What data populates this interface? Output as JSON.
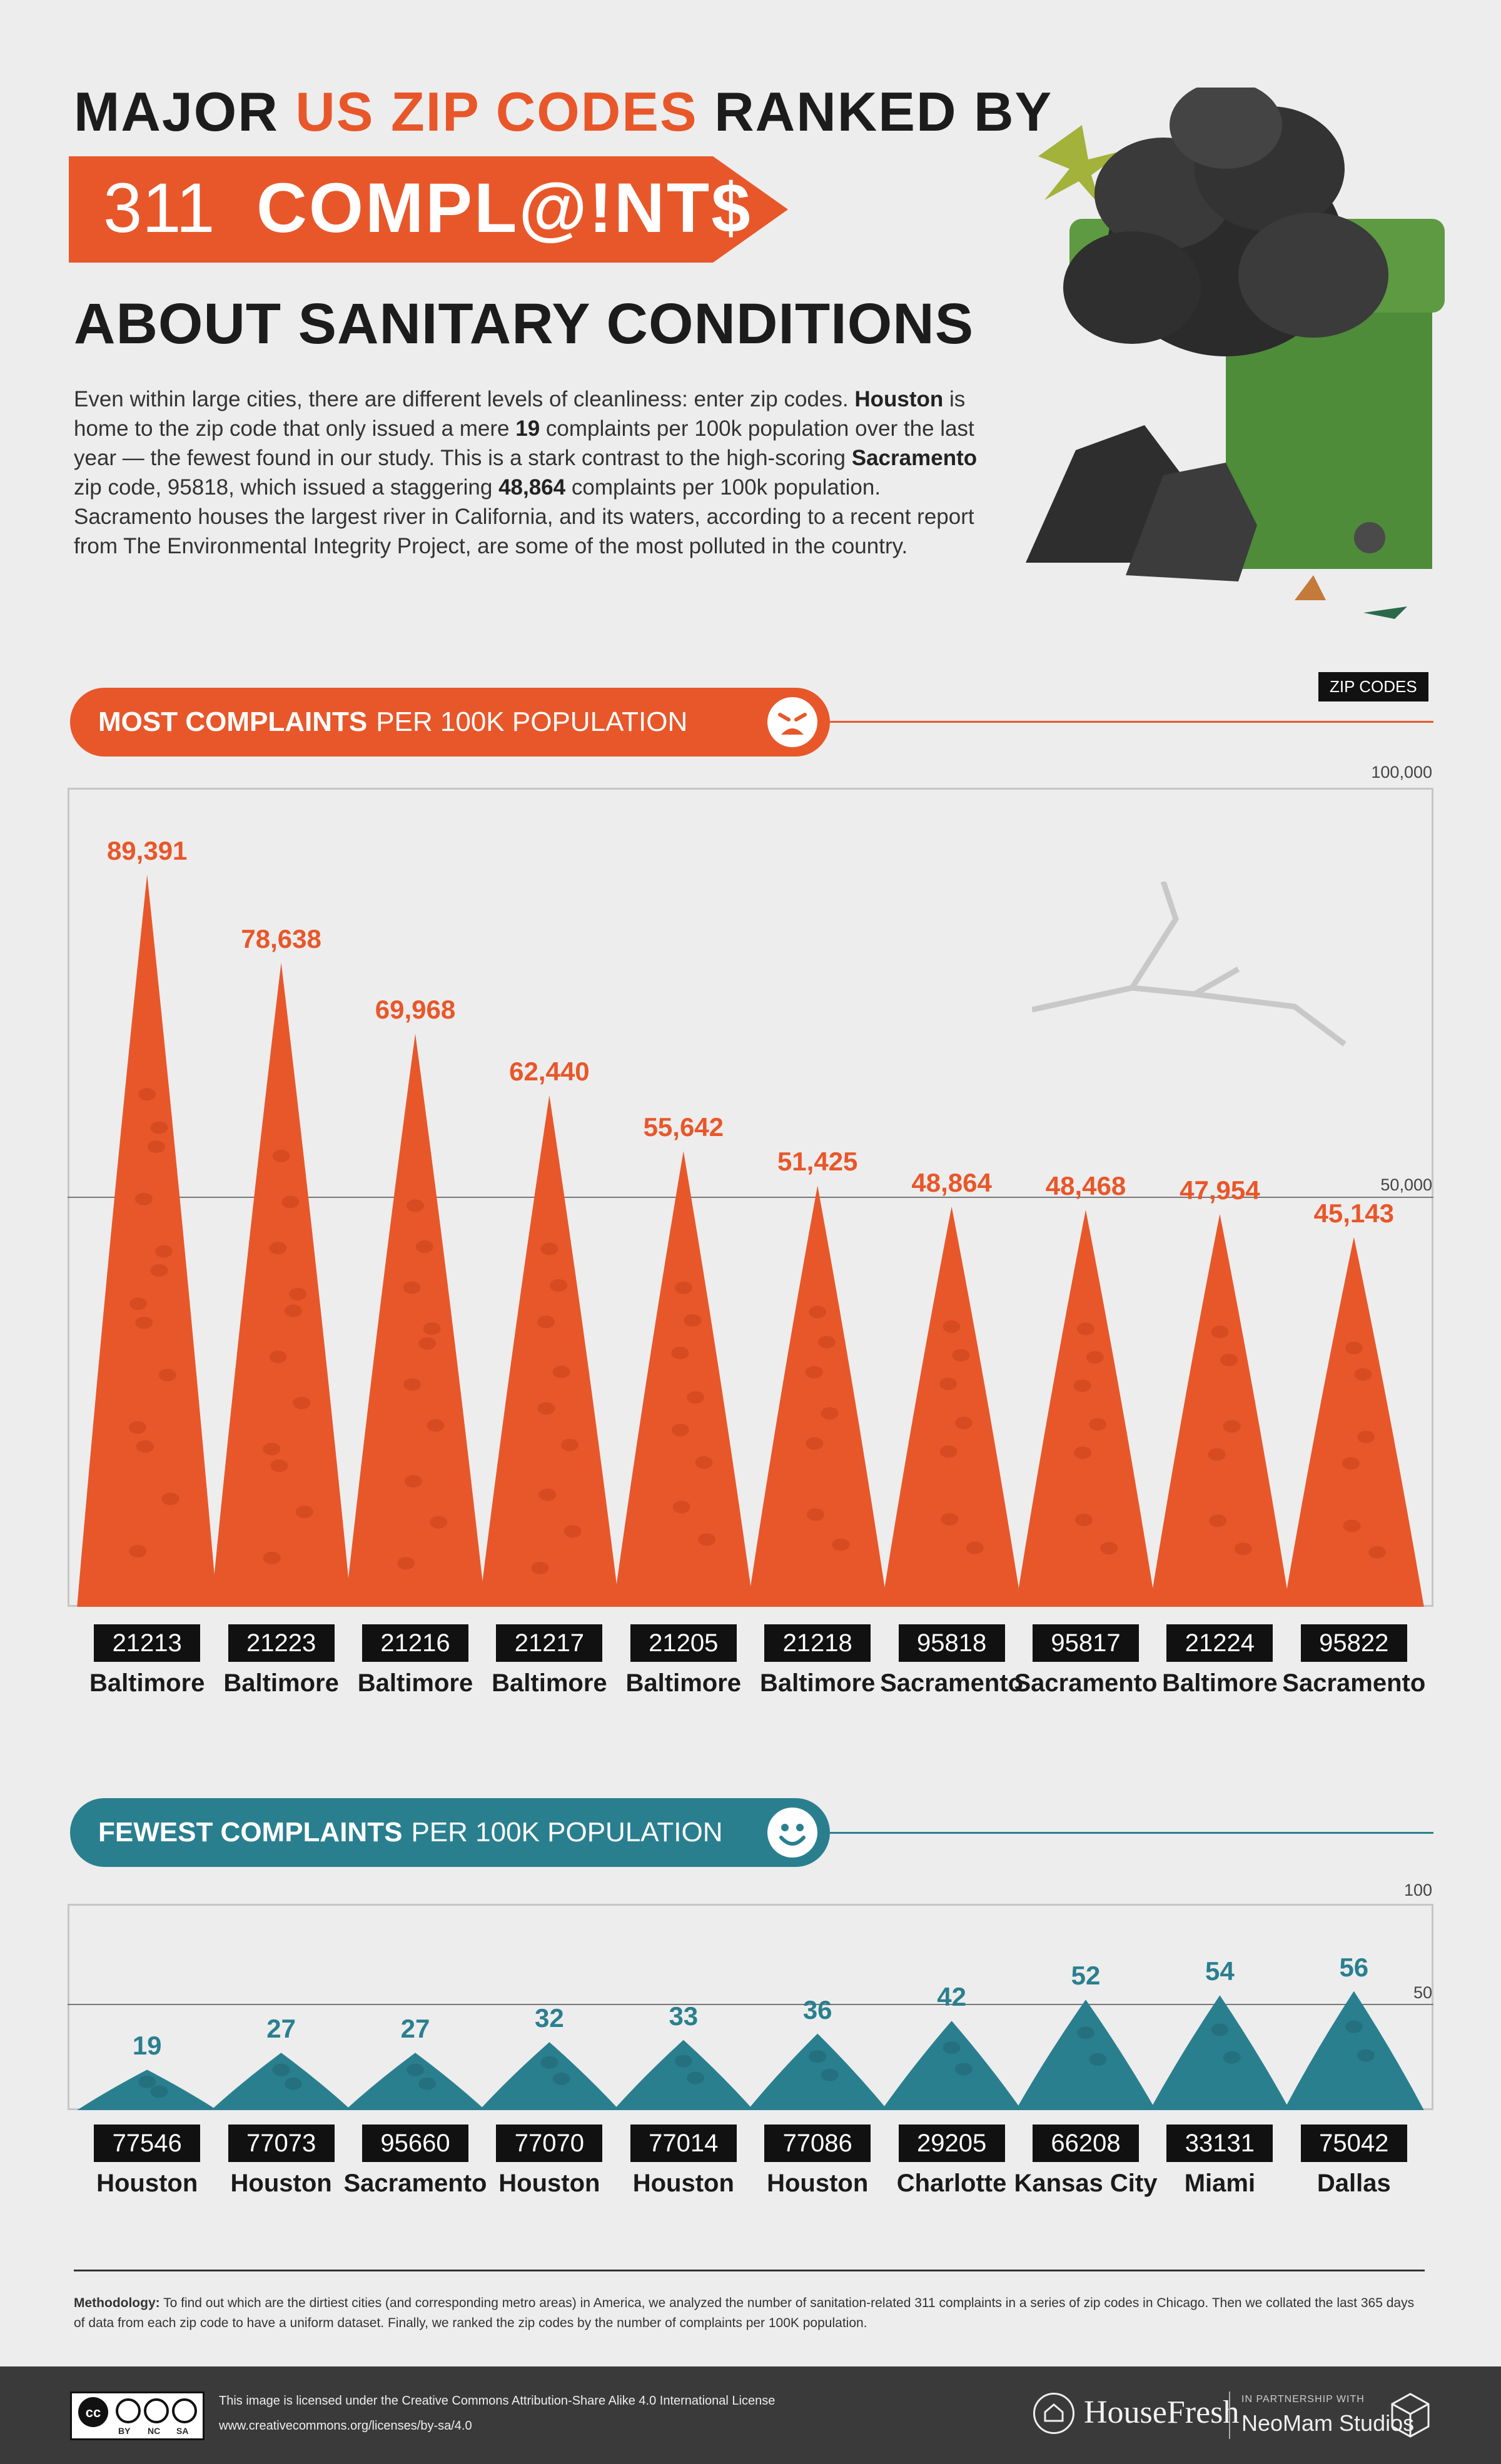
{
  "header": {
    "title_pre": "MAJOR ",
    "title_accent": "US ZIP CODES",
    "title_post": " RANKED BY",
    "banner_num": "311",
    "banner_word": "COMPL@!NT$",
    "subtitle": "ABOUT SANITARY CONDITIONS"
  },
  "intro": {
    "t1": "Even within large cities, there are different levels of cleanliness: enter zip codes. ",
    "b1": "Houston",
    "t2": " is home to the zip code that only issued a mere ",
    "b2": "19",
    "t3": " complaints per 100k population over the last year — the fewest found in our study. This is a stark contrast to the high-scoring ",
    "b3": "Sacramento",
    "t4": " zip code, 95818, which issued a staggering ",
    "b4": "48,864",
    "t5": " complaints per 100k population. Sacramento houses the largest river in California, and its waters, according to a recent report from The Environmental Integrity Project, are some of the most polluted in the country."
  },
  "most": {
    "heading_bold": "MOST COMPLAINTS",
    "heading_light": "PER 100K POPULATION",
    "badge": "ZIP CODES"
  },
  "fewest": {
    "heading_bold": "FEWEST COMPLAINTS",
    "heading_light": "PER 100K POPULATION"
  },
  "colors": {
    "orange": "#e8572a",
    "teal": "#2a7f8f",
    "dark": "#1c1c1c"
  },
  "chart_data": [
    {
      "type": "bar",
      "title": "MOST COMPLAINTS PER 100K POPULATION",
      "categories": [
        "21213",
        "21223",
        "21216",
        "21217",
        "21205",
        "21218",
        "95818",
        "95817",
        "21224",
        "95822"
      ],
      "cities": [
        "Baltimore",
        "Baltimore",
        "Baltimore",
        "Baltimore",
        "Baltimore",
        "Baltimore",
        "Sacramento",
        "Sacramento",
        "Baltimore",
        "Sacramento"
      ],
      "values": [
        89391,
        78638,
        69968,
        62440,
        55642,
        51425,
        48864,
        48468,
        47954,
        45143
      ],
      "value_labels": [
        "89,391",
        "78,638",
        "69,968",
        "62,440",
        "55,642",
        "51,425",
        "48,864",
        "48,468",
        "47,954",
        "45,143"
      ],
      "ylim": [
        0,
        100000
      ],
      "ticks": [
        "100,000",
        "50,000"
      ],
      "tick_values": [
        100000,
        50000
      ],
      "color": "#e8572a"
    },
    {
      "type": "bar",
      "title": "FEWEST COMPLAINTS PER 100K POPULATION",
      "categories": [
        "77546",
        "77073",
        "95660",
        "77070",
        "77014",
        "77086",
        "29205",
        "66208",
        "33131",
        "75042"
      ],
      "cities": [
        "Houston",
        "Houston",
        "Sacramento",
        "Houston",
        "Houston",
        "Houston",
        "Charlotte",
        "Kansas City",
        "Miami",
        "Dallas"
      ],
      "values": [
        19,
        27,
        27,
        32,
        33,
        36,
        42,
        52,
        54,
        56
      ],
      "value_labels": [
        "19",
        "27",
        "27",
        "32",
        "33",
        "36",
        "42",
        "52",
        "54",
        "56"
      ],
      "ylim": [
        0,
        100
      ],
      "ticks": [
        "100",
        "50"
      ],
      "tick_values": [
        100,
        50
      ],
      "color": "#2a7f8f"
    }
  ],
  "methodology": {
    "label": "Methodology:",
    "text": " To find out which are the dirtiest cities (and corresponding metro areas) in America, we analyzed the number of sanitation-related 311 complaints in a series of zip codes in Chicago. Then we collated the last 365 days of data from each zip code to have a uniform dataset. Finally, we ranked the zip codes by the number of complaints per 100K population."
  },
  "footer": {
    "license_line1": "This image is licensed under the Creative Commons Attribution-Share Alike 4.0  International License",
    "license_line2": "www.creativecommons.org/licenses/by-sa/4.0",
    "cc_by": "BY",
    "cc_nc": "NC",
    "cc_sa": "SA",
    "brand": "HouseFresh",
    "partner_small": "IN PARTNERSHIP WITH",
    "partner": "NeoMam Studios"
  }
}
